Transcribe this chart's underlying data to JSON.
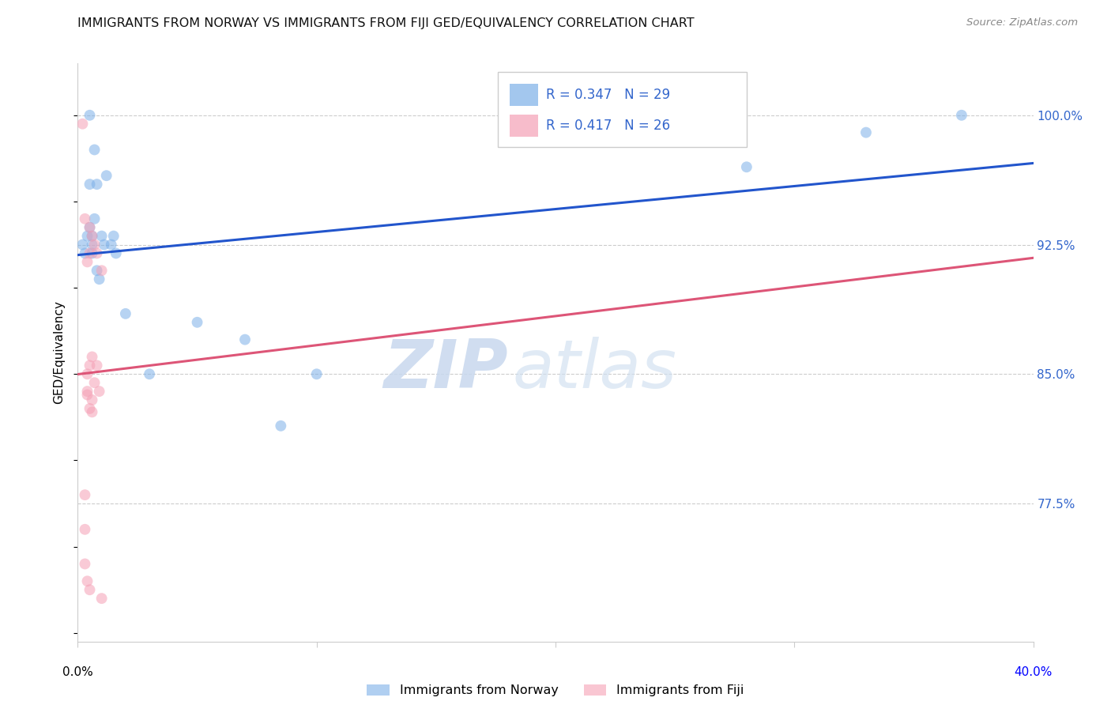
{
  "title": "IMMIGRANTS FROM NORWAY VS IMMIGRANTS FROM FIJI GED/EQUIVALENCY CORRELATION CHART",
  "source": "Source: ZipAtlas.com",
  "ylabel": "GED/Equivalency",
  "yticks": [
    0.775,
    0.85,
    0.925,
    1.0
  ],
  "ytick_labels": [
    "77.5%",
    "85.0%",
    "92.5%",
    "100.0%"
  ],
  "xlim": [
    0.0,
    0.4
  ],
  "ylim": [
    0.695,
    1.03
  ],
  "norway_color": "#7cb0e8",
  "fiji_color": "#f5a0b5",
  "norway_line_color": "#2255cc",
  "fiji_line_color": "#dd5577",
  "norway_R": 0.347,
  "norway_N": 29,
  "fiji_R": 0.417,
  "fiji_N": 26,
  "norway_x": [
    0.002,
    0.003,
    0.004,
    0.005,
    0.005,
    0.005,
    0.006,
    0.006,
    0.006,
    0.007,
    0.007,
    0.008,
    0.008,
    0.009,
    0.01,
    0.011,
    0.012,
    0.014,
    0.015,
    0.016,
    0.02,
    0.03,
    0.05,
    0.07,
    0.085,
    0.1,
    0.28,
    0.33,
    0.37
  ],
  "norway_y": [
    0.925,
    0.92,
    0.93,
    0.935,
    0.96,
    1.0,
    0.925,
    0.93,
    0.92,
    0.94,
    0.98,
    0.96,
    0.91,
    0.905,
    0.93,
    0.925,
    0.965,
    0.925,
    0.93,
    0.92,
    0.885,
    0.85,
    0.88,
    0.87,
    0.82,
    0.85,
    0.97,
    0.99,
    1.0
  ],
  "fiji_x": [
    0.002,
    0.003,
    0.003,
    0.003,
    0.004,
    0.004,
    0.004,
    0.004,
    0.005,
    0.005,
    0.005,
    0.005,
    0.006,
    0.006,
    0.006,
    0.007,
    0.007,
    0.008,
    0.008,
    0.009,
    0.01,
    0.01,
    0.003,
    0.004,
    0.005,
    0.006
  ],
  "fiji_y": [
    0.995,
    0.94,
    0.78,
    0.76,
    0.915,
    0.85,
    0.84,
    0.838,
    0.935,
    0.92,
    0.855,
    0.83,
    0.93,
    0.86,
    0.828,
    0.925,
    0.845,
    0.92,
    0.855,
    0.84,
    0.91,
    0.72,
    0.74,
    0.73,
    0.725,
    0.835
  ],
  "watermark_zip": "ZIP",
  "watermark_atlas": "atlas",
  "legend_norway_label": "Immigrants from Norway",
  "legend_fiji_label": "Immigrants from Fiji",
  "marker_size": 100,
  "xtick_positions": [
    0.0,
    0.1,
    0.2,
    0.3,
    0.4
  ]
}
